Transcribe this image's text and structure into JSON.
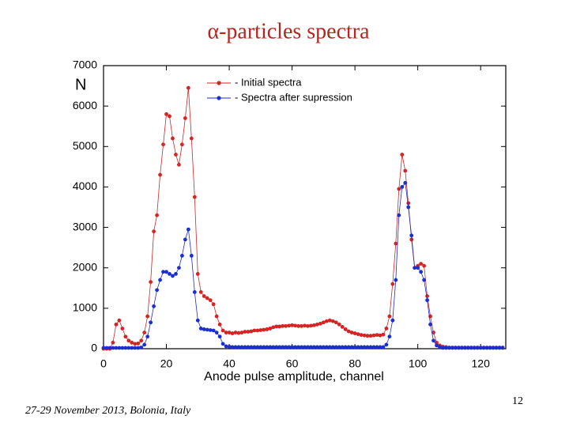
{
  "footer": "27-29 November 2013, Bolonia, Italy",
  "page_number": "12",
  "chart_data": {
    "type": "line",
    "title": "α-particles spectra",
    "ylabel": "N",
    "xlabel": "Anode pulse amplitude, channel",
    "xlim": [
      0,
      128
    ],
    "xticks": [
      0,
      20,
      40,
      60,
      80,
      100,
      120
    ],
    "ylim": [
      0,
      7000
    ],
    "yticks": [
      0,
      1000,
      2000,
      3000,
      4000,
      5000,
      6000,
      7000
    ],
    "legend": "top",
    "x": [
      0,
      1,
      2,
      3,
      4,
      5,
      6,
      7,
      8,
      9,
      10,
      11,
      12,
      13,
      14,
      15,
      16,
      17,
      18,
      19,
      20,
      21,
      22,
      23,
      24,
      25,
      26,
      27,
      28,
      29,
      30,
      31,
      32,
      33,
      34,
      35,
      36,
      37,
      38,
      39,
      40,
      41,
      42,
      43,
      44,
      45,
      46,
      47,
      48,
      49,
      50,
      51,
      52,
      53,
      54,
      55,
      56,
      57,
      58,
      59,
      60,
      61,
      62,
      63,
      64,
      65,
      66,
      67,
      68,
      69,
      70,
      71,
      72,
      73,
      74,
      75,
      76,
      77,
      78,
      79,
      80,
      81,
      82,
      83,
      84,
      85,
      86,
      87,
      88,
      89,
      90,
      91,
      92,
      93,
      94,
      95,
      96,
      97,
      98,
      99,
      100,
      101,
      102,
      103,
      104,
      105,
      106,
      107,
      108,
      109,
      110,
      111,
      112,
      113,
      114,
      115,
      116,
      117,
      118,
      119,
      120,
      121,
      122,
      123,
      124,
      125,
      126,
      127
    ],
    "series": [
      {
        "name": "- Initial spectra",
        "color": "#d42424",
        "values": [
          0,
          0,
          0,
          150,
          600,
          700,
          500,
          300,
          200,
          150,
          120,
          130,
          200,
          400,
          800,
          1650,
          2900,
          3300,
          4300,
          5050,
          5800,
          5750,
          5200,
          4800,
          4550,
          5050,
          5700,
          6450,
          5200,
          3750,
          1850,
          1400,
          1300,
          1250,
          1200,
          1100,
          800,
          600,
          450,
          400,
          400,
          380,
          400,
          390,
          400,
          420,
          420,
          430,
          450,
          450,
          460,
          470,
          480,
          500,
          530,
          550,
          550,
          560,
          560,
          570,
          580,
          570,
          560,
          560,
          570,
          560,
          570,
          580,
          600,
          620,
          650,
          680,
          700,
          680,
          650,
          600,
          540,
          480,
          430,
          400,
          380,
          360,
          340,
          330,
          320,
          320,
          330,
          340,
          330,
          350,
          500,
          800,
          1600,
          2600,
          3950,
          4800,
          4400,
          3600,
          2700,
          2000,
          2050,
          2100,
          2050,
          1300,
          800,
          400,
          150,
          80,
          50,
          40,
          30,
          30,
          30,
          30,
          30,
          30,
          30,
          30,
          30,
          30,
          30,
          30,
          30,
          30,
          30,
          30,
          30,
          30
        ]
      },
      {
        "name": "- Spectra after supression",
        "color": "#1a2ed4",
        "values": [
          20,
          20,
          20,
          20,
          20,
          20,
          20,
          20,
          20,
          20,
          20,
          20,
          30,
          100,
          300,
          650,
          1050,
          1450,
          1700,
          1900,
          1900,
          1850,
          1800,
          1850,
          2000,
          2300,
          2700,
          2950,
          2300,
          1400,
          700,
          500,
          480,
          470,
          460,
          450,
          400,
          300,
          120,
          60,
          50,
          40,
          40,
          40,
          40,
          40,
          40,
          40,
          40,
          40,
          40,
          40,
          40,
          40,
          40,
          40,
          40,
          40,
          40,
          40,
          40,
          40,
          40,
          40,
          40,
          40,
          40,
          40,
          40,
          40,
          40,
          40,
          40,
          40,
          40,
          40,
          40,
          40,
          40,
          40,
          40,
          40,
          40,
          40,
          40,
          40,
          40,
          40,
          40,
          40,
          100,
          300,
          700,
          1700,
          3300,
          4000,
          4100,
          3500,
          2800,
          2000,
          2000,
          1900,
          1700,
          1200,
          600,
          200,
          80,
          40,
          20,
          20,
          20,
          20,
          20,
          20,
          20,
          20,
          20,
          20,
          20,
          20,
          20,
          20,
          20,
          20,
          20,
          20,
          20,
          20
        ]
      }
    ]
  }
}
